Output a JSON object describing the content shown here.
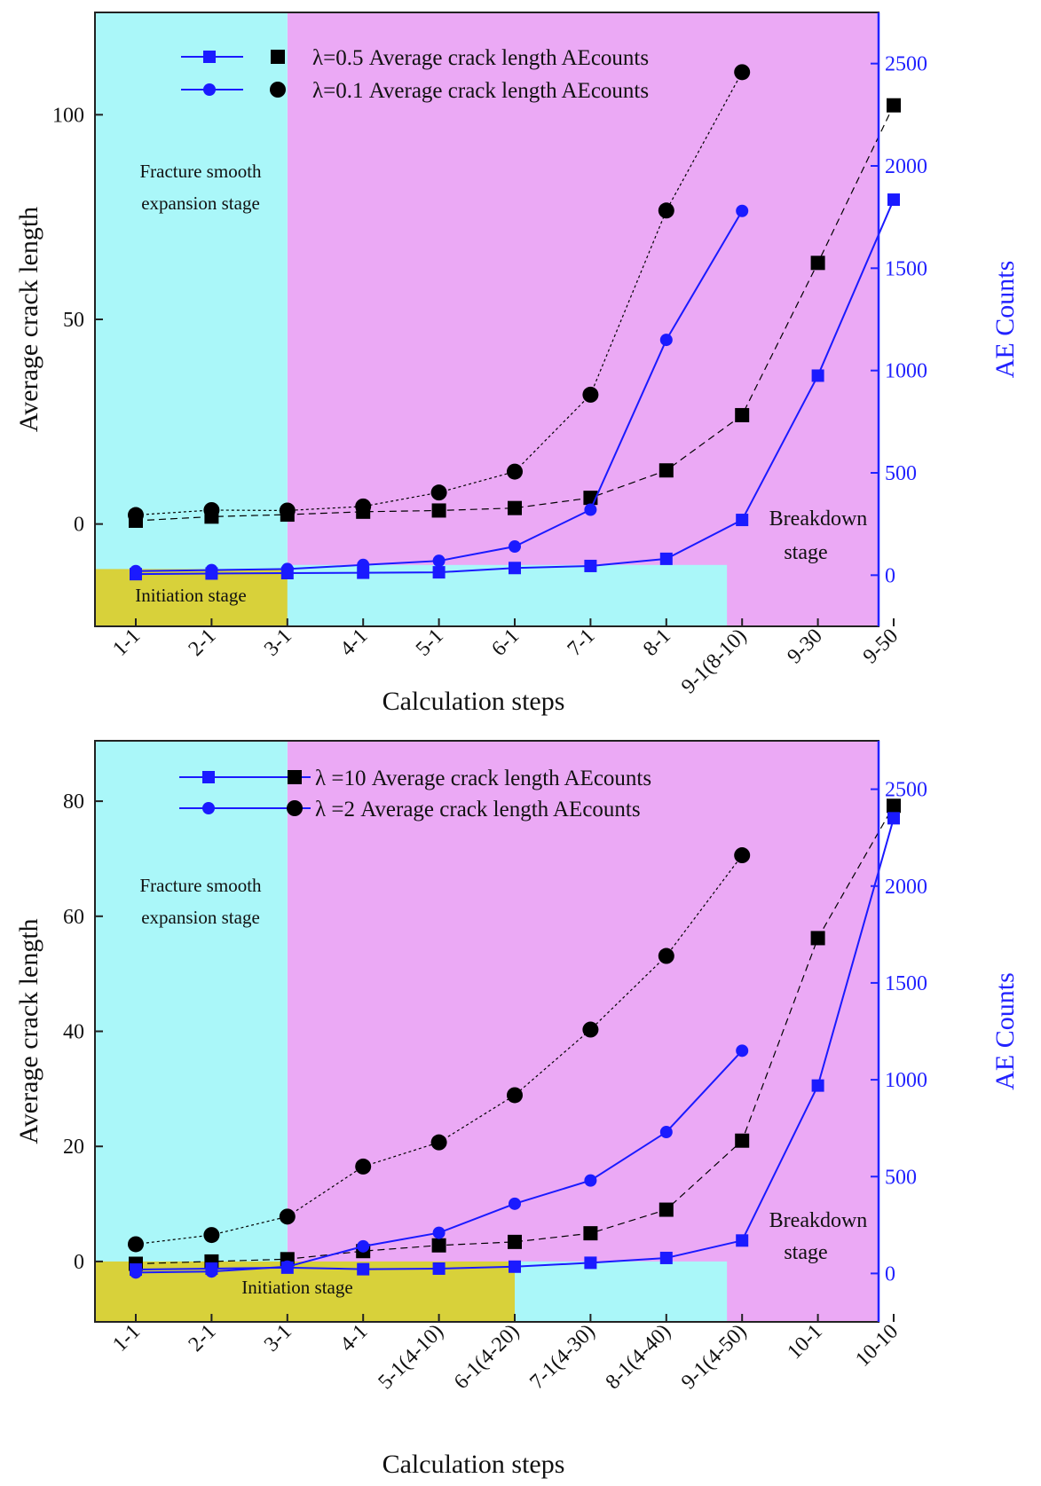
{
  "colors": {
    "cyan": "#aaf7f9",
    "magenta": "#eba9f5",
    "yellow": "#d8d13a",
    "black_series": "#000000",
    "blue_series": "#1a1aff",
    "right_axis": "#2222ff"
  },
  "chart_data": [
    {
      "type": "line",
      "title": "",
      "xlabel": "Calculation steps",
      "ylabel": "Average crack length",
      "ylabel_right": "AE Counts",
      "categories": [
        "1-1",
        "2-1",
        "3-1",
        "4-1",
        "5-1",
        "6-1",
        "7-1",
        "8-1",
        "9-1(8-10)",
        "9-30",
        "9-50"
      ],
      "ylim": [
        -25,
        125
      ],
      "yticks": [
        0,
        50,
        100
      ],
      "ylim_right": [
        -250,
        2750
      ],
      "yticks_right": [
        0,
        500,
        1000,
        1500,
        2000,
        2500
      ],
      "legend": {
        "row1": "λ=0.5 Average crack length  AEcounts",
        "row2": "λ=0.1 Average crack length  AEcounts"
      },
      "annotations": {
        "fracture_line1": "Fracture smooth",
        "fracture_line2": "expansion stage",
        "initiation": "Initiation stage",
        "breakdown_line1": "Breakdown",
        "breakdown_line2": "stage"
      },
      "regions": [
        {
          "name": "fracture smooth expansion stage",
          "color": "cyan",
          "x_from": 0,
          "x_to": 2
        },
        {
          "name": "initiation stage",
          "color": "yellow",
          "x_from": 0,
          "x_to": 2,
          "y_from": -25,
          "y_to": -11
        },
        {
          "name": "cyan band",
          "color": "cyan",
          "x_from": 2,
          "x_to": 7.8,
          "y_from": -25,
          "y_to": -10
        },
        {
          "name": "breakdown stage",
          "color": "magenta",
          "x_from": 2,
          "x_to": 10
        }
      ],
      "series": [
        {
          "name": "λ=0.5 Average crack length",
          "axis": "left",
          "marker": "square",
          "color": "black",
          "dash": "8 5",
          "values": [
            0.8,
            1.8,
            2.3,
            3.0,
            3.3,
            3.9,
            6.4,
            13.1,
            26.6,
            63.8,
            102.3
          ]
        },
        {
          "name": "λ=0.1 Average crack length",
          "axis": "left",
          "marker": "circle",
          "color": "black",
          "dash": "3 3",
          "values": [
            2.2,
            3.4,
            3.3,
            4.3,
            7.7,
            12.8,
            31.6,
            76.6,
            110.4,
            null,
            null
          ]
        },
        {
          "name": "λ=0.5 AEcounts",
          "axis": "right",
          "marker": "square",
          "color": "blue",
          "dash": "",
          "values": [
            5,
            8,
            10,
            12,
            14,
            35,
            45,
            80,
            270,
            975,
            1835
          ]
        },
        {
          "name": "λ=0.1 AEcounts",
          "axis": "right",
          "marker": "circle",
          "color": "blue",
          "dash": "",
          "values": [
            20,
            25,
            30,
            50,
            70,
            140,
            320,
            1150,
            1780,
            null,
            null
          ]
        }
      ]
    },
    {
      "type": "line",
      "title": "",
      "xlabel": "Calculation steps",
      "ylabel": "Average crack length",
      "ylabel_right": "AE Counts",
      "categories": [
        "1-1",
        "2-1",
        "3-1",
        "4-1",
        "5-1(4-10)",
        "6-1(4-20)",
        "7-1(4-30)",
        "8-1(4-40)",
        "9-1(4-50)",
        "10-1",
        "10-10"
      ],
      "ylim": [
        -10.5,
        90.5
      ],
      "yticks": [
        0,
        20,
        40,
        60,
        80
      ],
      "ylim_right": [
        -250,
        2750
      ],
      "yticks_right": [
        0,
        500,
        1000,
        1500,
        2000,
        2500
      ],
      "legend": {
        "row1": "λ =10 Average crack length  AEcounts",
        "row2": "λ =2 Average crack length  AEcounts"
      },
      "annotations": {
        "fracture_line1": "Fracture smooth",
        "fracture_line2": "expansion stage",
        "initiation": "Initiation stage",
        "breakdown_line1": "Breakdown",
        "breakdown_line2": "stage"
      },
      "regions": [
        {
          "name": "fracture smooth expansion stage",
          "color": "cyan",
          "x_from": 0,
          "x_to": 2
        },
        {
          "name": "initiation stage",
          "color": "yellow",
          "x_from": 0,
          "x_to": 5,
          "y_from": -10.5,
          "y_to": 0
        },
        {
          "name": "cyan band",
          "color": "cyan",
          "x_from": 5,
          "x_to": 7.8,
          "y_from": -10.5,
          "y_to": 0
        },
        {
          "name": "breakdown stage",
          "color": "magenta",
          "x_from": 2,
          "x_to": 10
        }
      ],
      "series": [
        {
          "name": "λ=10 Average crack length",
          "axis": "left",
          "marker": "square",
          "color": "black",
          "dash": "8 5",
          "values": [
            -0.4,
            0.0,
            0.4,
            1.8,
            2.8,
            3.4,
            4.9,
            9.0,
            21.0,
            56.2,
            79.2
          ]
        },
        {
          "name": "λ=2 Average crack length",
          "axis": "left",
          "marker": "circle",
          "color": "black",
          "dash": "3 3",
          "values": [
            3.0,
            4.6,
            7.8,
            16.5,
            20.7,
            28.9,
            40.3,
            53.1,
            70.6,
            null,
            null
          ]
        },
        {
          "name": "λ=10 AEcounts",
          "axis": "right",
          "marker": "square",
          "color": "blue",
          "dash": "",
          "values": [
            20,
            25,
            30,
            22,
            25,
            35,
            55,
            80,
            170,
            970,
            2350
          ]
        },
        {
          "name": "λ=2 AEcounts",
          "axis": "right",
          "marker": "circle",
          "color": "blue",
          "dash": "",
          "values": [
            5,
            10,
            35,
            140,
            210,
            360,
            480,
            730,
            1150,
            null,
            null
          ]
        }
      ]
    }
  ]
}
